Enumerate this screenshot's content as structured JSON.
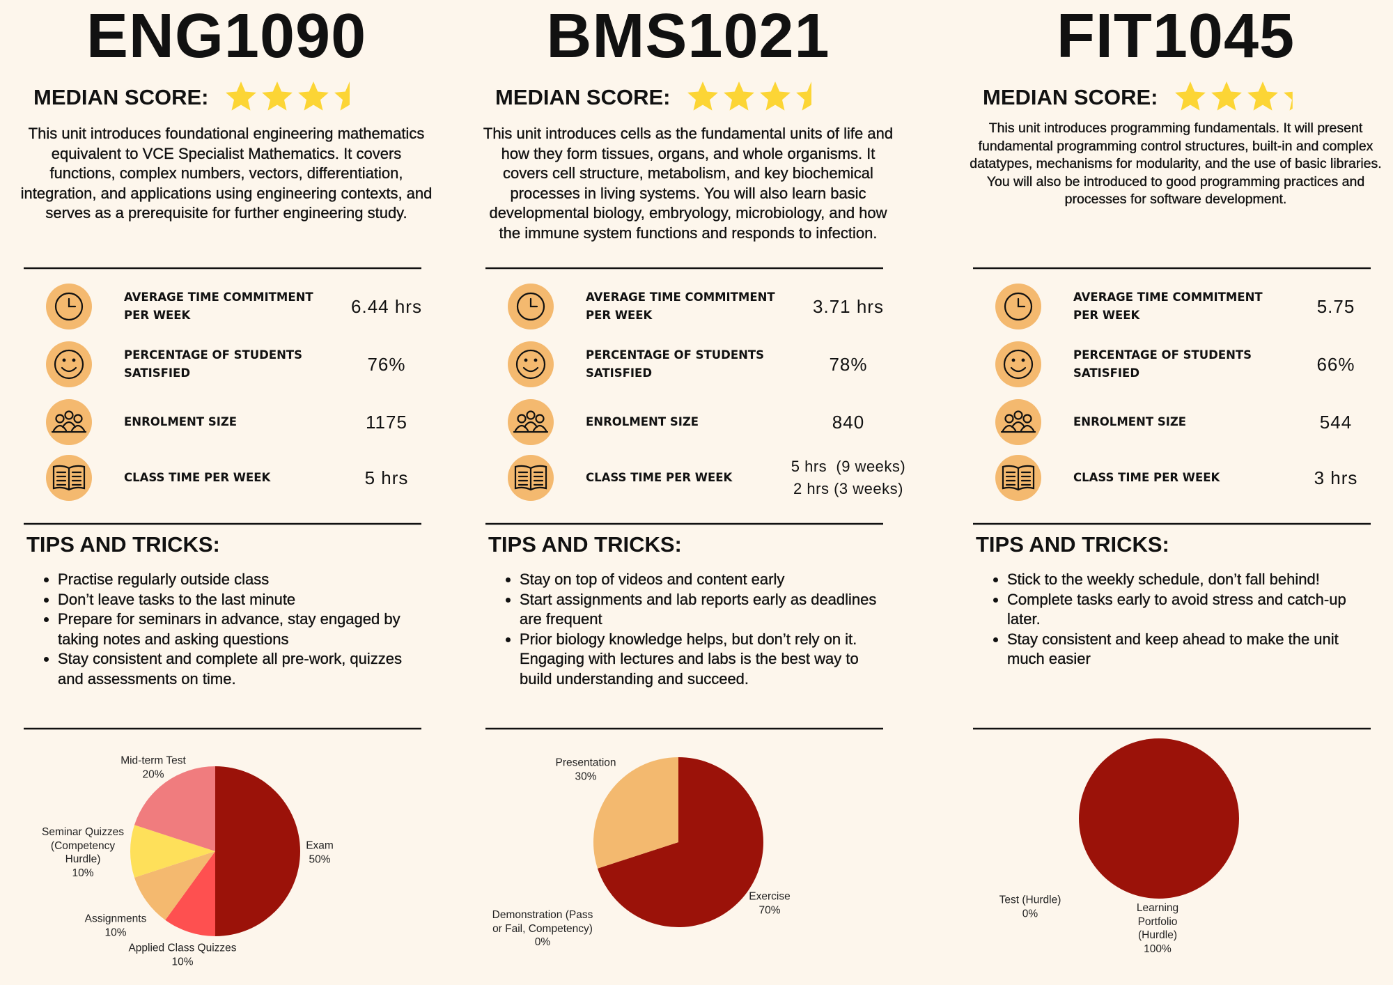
{
  "units": [
    {
      "code": "ENG1090",
      "median_label": "MEDIAN SCORE:",
      "median_score": 3.5,
      "description": "This unit introduces foundational engineering mathematics equivalent to VCE Specialist Mathematics. It covers functions, complex numbers, vectors, differentiation, integration, and applications using engineering contexts, and serves as a prerequisite for further engineering study.",
      "stats": [
        {
          "label": "AVERAGE TIME COMMITMENT PER WEEK",
          "value": "6.44 hrs"
        },
        {
          "label": "PERCENTAGE OF STUDENTS SATISFIED",
          "value": "76%"
        },
        {
          "label": "ENROLMENT SIZE",
          "value": "1175"
        },
        {
          "label": "CLASS TIME PER WEEK",
          "value": "5 hrs"
        }
      ],
      "tips_heading": "TIPS AND TRICKS:",
      "tips": [
        "Practise regularly outside class",
        "Don’t leave tasks to the last minute",
        "Prepare for seminars in advance, stay engaged by taking notes and asking questions",
        "Stay consistent and complete all pre-work, quizzes and assessments on time."
      ]
    },
    {
      "code": "BMS1021",
      "median_label": "MEDIAN SCORE:",
      "median_score": 3.5,
      "description": "This unit introduces cells as the fundamental units of life and how they form tissues, organs, and whole organisms. It covers cell structure, metabolism, and key biochemical processes in living systems. You will also learn basic developmental biology, embryology, microbiology, and how the immune system functions and responds to infection.",
      "stats": [
        {
          "label": "AVERAGE TIME COMMITMENT PER WEEK",
          "value": "3.71 hrs"
        },
        {
          "label": "PERCENTAGE OF STUDENTS SATISFIED",
          "value": "78%"
        },
        {
          "label": "ENROLMENT SIZE",
          "value": "840"
        },
        {
          "label": "CLASS TIME PER WEEK",
          "value": [
            "5 hrs  (9 weeks)",
            "2 hrs (3 weeks)"
          ]
        }
      ],
      "tips_heading": "TIPS AND TRICKS:",
      "tips": [
        "Stay on top of videos and content early",
        "Start assignments and lab reports early as deadlines are frequent",
        "Prior biology knowledge helps, but don’t rely on it. Engaging with lectures and labs is the best way to build understanding and succeed."
      ]
    },
    {
      "code": "FIT1045",
      "median_label": "MEDIAN SCORE:",
      "median_score": 3.3,
      "description": "This unit introduces programming fundamentals. It will present fundamental programming control structures, built-in and complex datatypes, mechanisms for modularity, and the use of basic libraries. You will also be introduced to good programming practices and processes for software development.",
      "stats": [
        {
          "label": "AVERAGE TIME COMMITMENT PER WEEK",
          "value": "5.75"
        },
        {
          "label": "PERCENTAGE OF STUDENTS SATISFIED",
          "value": "66%"
        },
        {
          "label": "ENROLMENT SIZE",
          "value": "544"
        },
        {
          "label": "CLASS TIME PER WEEK",
          "value": "3 hrs"
        }
      ],
      "tips_heading": "TIPS AND TRICKS:",
      "tips": [
        "Stick to the weekly schedule, don’t fall behind!",
        "Complete tasks early to avoid stress and catch-up later.",
        "Stay consistent and keep ahead to make the unit much easier"
      ]
    }
  ],
  "chart_data": [
    {
      "type": "pie",
      "categories": [
        "Exam",
        "Applied Class Quizzes",
        "Assignments",
        "Seminar Quizzes (Competency Hurdle)",
        "Mid-term Test"
      ],
      "values": [
        50,
        10,
        10,
        10,
        20
      ],
      "value_labels": [
        "50%",
        "10%",
        "10%",
        "10%",
        "20%"
      ],
      "colors": [
        "#9b1209",
        "#fe5050",
        "#f4b96f",
        "#fee05a",
        "#f07c7e"
      ]
    },
    {
      "type": "pie",
      "categories": [
        "Exercise",
        "Demonstration (Pass or Fail, Competency)",
        "Presentation"
      ],
      "values": [
        70,
        0,
        30
      ],
      "value_labels": [
        "70%",
        "0%",
        "30%"
      ],
      "colors": [
        "#9b1209",
        "#fe5050",
        "#f3b96f"
      ]
    },
    {
      "type": "pie",
      "categories": [
        "Learning Portfolio (Hurdle)",
        "Test (Hurdle)"
      ],
      "values": [
        100,
        0
      ],
      "value_labels": [
        "100%",
        "0%"
      ],
      "colors": [
        "#9b1209",
        "#f3b96f"
      ]
    }
  ]
}
